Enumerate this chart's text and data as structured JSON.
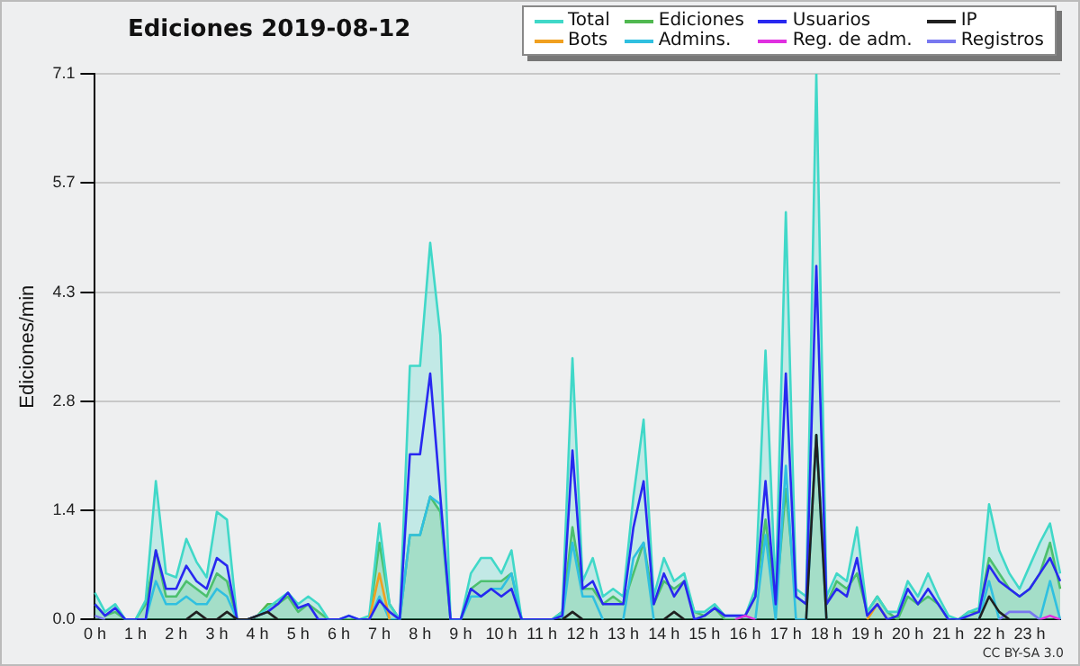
{
  "chart_data": {
    "type": "line",
    "title": "Ediciones  2019-08-12",
    "ylabel": "Ediciones/min",
    "annotations": [
      "CC BY-SA 3.0"
    ],
    "categories": [
      "0 h",
      null,
      null,
      null,
      "1 h",
      null,
      null,
      null,
      "2 h",
      null,
      null,
      null,
      "3 h",
      null,
      null,
      null,
      "4 h",
      null,
      null,
      null,
      "5 h",
      null,
      null,
      null,
      "6 h",
      null,
      null,
      null,
      "7 h",
      null,
      null,
      null,
      "8 h",
      null,
      null,
      null,
      "9 h",
      null,
      null,
      null,
      "10 h",
      null,
      null,
      null,
      "11 h",
      null,
      null,
      null,
      "12 h",
      null,
      null,
      null,
      "13 h",
      null,
      null,
      null,
      "14 h",
      null,
      null,
      null,
      "15 h",
      null,
      null,
      null,
      "16 h",
      null,
      null,
      null,
      "17 h",
      null,
      null,
      null,
      "18 h",
      null,
      null,
      null,
      "19 h",
      null,
      null,
      null,
      "20 h",
      null,
      null,
      null,
      "21 h",
      null,
      null,
      null,
      "22 h",
      null,
      null,
      null,
      "23 h",
      null,
      null,
      null
    ],
    "ylim": [
      0,
      7.1
    ],
    "yticks": [
      {
        "value": 0,
        "label": "0.0"
      },
      {
        "value": 1.42,
        "label": "1.4"
      },
      {
        "value": 2.84,
        "label": "2.8"
      },
      {
        "value": 4.26,
        "label": "4.3"
      },
      {
        "value": 5.68,
        "label": "5.7"
      },
      {
        "value": 7.1,
        "label": "7.1"
      }
    ],
    "grid": "y",
    "legend": "top right",
    "marker": "none",
    "series": [
      {
        "name": "Total",
        "type": "area",
        "color": "#40d8c8",
        "values": [
          0.35,
          0.1,
          0.2,
          0,
          0,
          0.25,
          1.8,
          0.6,
          0.55,
          1.05,
          0.75,
          0.55,
          1.4,
          1.3,
          0,
          0,
          0.05,
          0.15,
          0.25,
          0.35,
          0.2,
          0.3,
          0.2,
          0,
          0,
          0.05,
          0,
          0.05,
          1.25,
          0.2,
          0,
          3.3,
          3.3,
          4.9,
          3.7,
          0,
          0,
          0.6,
          0.8,
          0.8,
          0.6,
          0.9,
          0,
          0,
          0,
          0,
          0.1,
          3.4,
          0.5,
          0.8,
          0.3,
          0.4,
          0.3,
          1.6,
          2.6,
          0.3,
          0.8,
          0.5,
          0.6,
          0.1,
          0.1,
          0.2,
          0.05,
          0.05,
          0.05,
          0.4,
          3.5,
          0.3,
          5.3,
          0.4,
          0.3,
          7.1,
          0.3,
          0.6,
          0.5,
          1.2,
          0.1,
          0.3,
          0.1,
          0.1,
          0.5,
          0.3,
          0.6,
          0.3,
          0.05,
          0,
          0.1,
          0.15,
          1.5,
          0.9,
          0.6,
          0.4,
          0.7,
          1.0,
          1.25,
          0.6
        ]
      },
      {
        "name": "Ediciones",
        "type": "area",
        "color": "#50b850",
        "values": [
          0.2,
          0.05,
          0.1,
          0,
          0,
          0.2,
          0.9,
          0.3,
          0.3,
          0.5,
          0.4,
          0.3,
          0.6,
          0.5,
          0,
          0,
          0.05,
          0.2,
          0.2,
          0.3,
          0.1,
          0.2,
          0.1,
          0,
          0,
          0,
          0,
          0,
          1.0,
          0.2,
          0,
          1.1,
          1.1,
          1.6,
          1.4,
          0,
          0,
          0.4,
          0.5,
          0.5,
          0.5,
          0.6,
          0,
          0,
          0,
          0,
          0.1,
          1.2,
          0.4,
          0.4,
          0.2,
          0.3,
          0.2,
          0.6,
          1.0,
          0.2,
          0.5,
          0.4,
          0.5,
          0.1,
          0.05,
          0.15,
          0,
          0,
          0.05,
          0.3,
          1.3,
          0.2,
          1.7,
          0.3,
          0.2,
          2.4,
          0.2,
          0.5,
          0.4,
          0.6,
          0.1,
          0.3,
          0.1,
          0,
          0.3,
          0.2,
          0.3,
          0.2,
          0,
          0,
          0.1,
          0.1,
          0.8,
          0.6,
          0.4,
          0.3,
          0.4,
          0.6,
          1.0,
          0.4
        ]
      },
      {
        "name": "Usuarios",
        "type": "line",
        "color": "#2828f0",
        "values": [
          0.2,
          0.05,
          0.15,
          0,
          0,
          0,
          0.9,
          0.4,
          0.4,
          0.7,
          0.5,
          0.4,
          0.8,
          0.7,
          0,
          0,
          0.05,
          0.1,
          0.2,
          0.35,
          0.15,
          0.2,
          0,
          0,
          0,
          0.05,
          0,
          0,
          0.25,
          0.1,
          0,
          2.15,
          2.15,
          3.2,
          1.6,
          0,
          0,
          0.4,
          0.3,
          0.4,
          0.3,
          0.4,
          0,
          0,
          0,
          0,
          0.05,
          2.2,
          0.4,
          0.5,
          0.2,
          0.2,
          0.2,
          1.2,
          1.8,
          0.2,
          0.6,
          0.3,
          0.5,
          0,
          0.05,
          0.15,
          0.05,
          0.05,
          0.05,
          0.3,
          1.8,
          0.2,
          3.2,
          0.3,
          0.2,
          4.6,
          0.2,
          0.4,
          0.3,
          0.8,
          0.05,
          0.2,
          0,
          0.05,
          0.4,
          0.2,
          0.4,
          0.2,
          0,
          0,
          0.05,
          0.1,
          0.7,
          0.5,
          0.4,
          0.3,
          0.4,
          0.6,
          0.8,
          0.5
        ]
      },
      {
        "name": "IP",
        "type": "line",
        "color": "#202020",
        "values": [
          null,
          null,
          null,
          null,
          null,
          null,
          null,
          null,
          null,
          0,
          0.1,
          0,
          0,
          0.1,
          0,
          0,
          0.05,
          0.1,
          0,
          null,
          null,
          null,
          null,
          null,
          null,
          null,
          null,
          null,
          null,
          null,
          null,
          null,
          null,
          null,
          null,
          null,
          null,
          null,
          null,
          null,
          null,
          null,
          null,
          null,
          null,
          null,
          0,
          0.1,
          0,
          null,
          null,
          null,
          null,
          null,
          null,
          null,
          0,
          0.1,
          0,
          null,
          null,
          null,
          null,
          null,
          null,
          null,
          null,
          null,
          null,
          null,
          0,
          2.4,
          0,
          null,
          null,
          null,
          null,
          null,
          null,
          null,
          null,
          null,
          null,
          null,
          null,
          null,
          null,
          0,
          0.3,
          0.1,
          0,
          null,
          null,
          null,
          null,
          null
        ]
      },
      {
        "name": "Bots",
        "type": "line",
        "color": "#f0a020",
        "values": [
          null,
          null,
          null,
          null,
          null,
          null,
          null,
          null,
          null,
          null,
          null,
          null,
          null,
          null,
          null,
          null,
          null,
          null,
          null,
          null,
          null,
          null,
          null,
          null,
          null,
          null,
          null,
          0,
          0.6,
          0,
          null,
          null,
          null,
          null,
          null,
          null,
          null,
          null,
          null,
          null,
          null,
          null,
          null,
          null,
          null,
          null,
          null,
          null,
          null,
          null,
          null,
          null,
          null,
          null,
          null,
          null,
          null,
          null,
          null,
          null,
          null,
          null,
          null,
          null,
          null,
          null,
          null,
          null,
          null,
          null,
          null,
          null,
          null,
          null,
          null,
          null,
          0,
          0.2,
          0,
          null,
          null,
          null,
          null,
          null,
          null,
          null,
          null,
          null,
          null,
          null,
          null,
          null,
          null,
          null,
          null,
          null
        ]
      },
      {
        "name": "Admins.",
        "type": "line",
        "color": "#30c0e0",
        "values": [
          null,
          null,
          null,
          null,
          null,
          0,
          0.5,
          0.2,
          0.2,
          0.3,
          0.2,
          0.2,
          0.4,
          0.3,
          0,
          null,
          null,
          null,
          null,
          null,
          null,
          null,
          null,
          null,
          null,
          null,
          null,
          0,
          0.3,
          0,
          0,
          1.1,
          1.1,
          1.6,
          1.5,
          0,
          0,
          0.3,
          0.3,
          0.4,
          0.4,
          0.6,
          0,
          null,
          null,
          null,
          0,
          1.0,
          0.3,
          0.3,
          0,
          null,
          0,
          0.8,
          1.0,
          0,
          null,
          null,
          null,
          null,
          null,
          null,
          null,
          null,
          null,
          0,
          1.1,
          0,
          2.0,
          0,
          0,
          2.4,
          0,
          null,
          null,
          null,
          null,
          null,
          null,
          null,
          null,
          null,
          null,
          null,
          null,
          null,
          null,
          0,
          0.5,
          0,
          null,
          null,
          null,
          0,
          0.5,
          0
        ]
      },
      {
        "name": "Reg. de adm.",
        "type": "line",
        "color": "#e030e0",
        "values": [
          null,
          null,
          null,
          null,
          null,
          null,
          null,
          null,
          null,
          null,
          null,
          null,
          null,
          null,
          null,
          null,
          null,
          null,
          null,
          null,
          null,
          null,
          null,
          null,
          null,
          null,
          null,
          null,
          null,
          null,
          null,
          null,
          null,
          null,
          null,
          null,
          null,
          null,
          null,
          null,
          null,
          null,
          null,
          null,
          null,
          null,
          null,
          null,
          null,
          null,
          null,
          null,
          null,
          null,
          null,
          null,
          null,
          null,
          null,
          null,
          null,
          null,
          null,
          0,
          0.05,
          0,
          null,
          null,
          null,
          null,
          null,
          null,
          null,
          null,
          null,
          null,
          null,
          null,
          null,
          null,
          null,
          null,
          null,
          null,
          null,
          null,
          null,
          null,
          null,
          null,
          null,
          null,
          null,
          0,
          0.05,
          0
        ]
      },
      {
        "name": "Registros",
        "type": "line",
        "color": "#7878f0",
        "values": [
          0.05,
          0,
          null,
          null,
          null,
          null,
          null,
          null,
          null,
          null,
          null,
          null,
          null,
          null,
          null,
          null,
          null,
          null,
          null,
          null,
          null,
          null,
          null,
          null,
          null,
          null,
          null,
          null,
          null,
          null,
          null,
          null,
          null,
          null,
          null,
          null,
          null,
          null,
          null,
          null,
          null,
          null,
          null,
          null,
          null,
          null,
          null,
          null,
          null,
          null,
          null,
          null,
          null,
          null,
          null,
          null,
          null,
          null,
          null,
          null,
          null,
          null,
          null,
          null,
          null,
          null,
          null,
          null,
          null,
          null,
          null,
          null,
          null,
          null,
          null,
          null,
          null,
          null,
          null,
          null,
          null,
          null,
          null,
          null,
          null,
          null,
          null,
          null,
          null,
          0,
          0.1,
          0.1,
          0.1,
          0,
          null,
          null
        ]
      }
    ]
  }
}
